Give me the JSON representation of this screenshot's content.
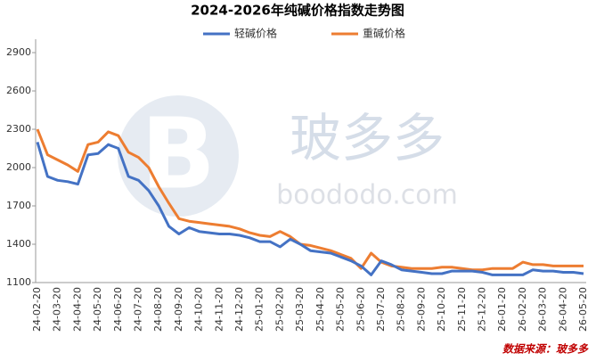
{
  "chart_data": {
    "type": "line",
    "title": "2024-2026年纯碱价格指数走势图",
    "categories": [
      "24-02-20",
      null,
      "24-03-20",
      null,
      "24-04-20",
      null,
      "24-05-20",
      null,
      "24-06-20",
      null,
      "24-07-20",
      null,
      "24-08-20",
      null,
      "24-09-20",
      null,
      "24-10-20",
      null,
      "24-11-20",
      null,
      "24-12-20",
      null,
      "25-01-20",
      null,
      "25-02-20",
      null,
      "25-03-20",
      null,
      "25-04-20",
      null,
      "25-05-20",
      null,
      "25-06-20",
      null,
      "25-07-20",
      null,
      "25-08-20",
      null,
      "25-09-20",
      null,
      "25-10-20",
      null,
      "25-11-20",
      null,
      "25-12-20",
      null,
      "26-01-20",
      null,
      "26-02-20",
      null,
      "26-03-20",
      null,
      "26-04-20",
      null,
      "26-05-20"
    ],
    "series": [
      {
        "name": "轻碱价格",
        "color": "#4472c4",
        "values": [
          2200,
          1930,
          1900,
          1890,
          1870,
          2100,
          2110,
          2180,
          2150,
          1930,
          1900,
          1820,
          1700,
          1540,
          1480,
          1530,
          1500,
          1490,
          1480,
          1480,
          1470,
          1450,
          1420,
          1420,
          1380,
          1440,
          1400,
          1350,
          1340,
          1330,
          1300,
          1270,
          1230,
          1160,
          1270,
          1240,
          1200,
          1190,
          1180,
          1170,
          1170,
          1190,
          1190,
          1190,
          1180,
          1160,
          1160,
          1160,
          1160,
          1200,
          1190,
          1190,
          1180,
          1180,
          1170
        ]
      },
      {
        "name": "重碱价格",
        "color": "#ed7d31",
        "values": [
          2300,
          2100,
          2060,
          2020,
          1970,
          2180,
          2200,
          2280,
          2250,
          2120,
          2080,
          2000,
          1850,
          1720,
          1600,
          1580,
          1570,
          1560,
          1550,
          1540,
          1520,
          1490,
          1470,
          1460,
          1500,
          1460,
          1400,
          1390,
          1370,
          1350,
          1320,
          1290,
          1210,
          1330,
          1260,
          1230,
          1220,
          1210,
          1210,
          1210,
          1220,
          1220,
          1210,
          1200,
          1200,
          1210,
          1210,
          1210,
          1260,
          1240,
          1240,
          1230,
          1230,
          1230,
          1230
        ]
      }
    ],
    "ylim": [
      1100,
      3000
    ],
    "yticks": [
      1100,
      1400,
      1700,
      2000,
      2300,
      2600,
      2900
    ],
    "watermark": {
      "brand": "玻多多",
      "site": "boododo.com"
    },
    "source": "数据来源：玻多多"
  }
}
